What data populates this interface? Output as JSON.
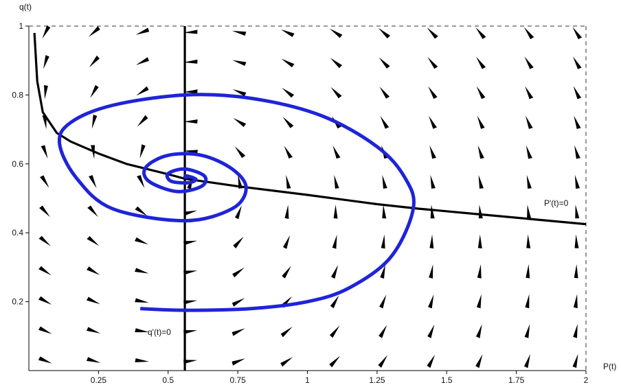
{
  "chart_data": {
    "type": "phase_portrait",
    "xlabel": "P(t)",
    "ylabel": "q(t)",
    "xlim": [
      0.0,
      2.0
    ],
    "ylim": [
      0.0,
      1.0
    ],
    "xticks": [
      0.25,
      0.5,
      0.75,
      1,
      1.25,
      1.5,
      1.75,
      2
    ],
    "xtick_labels": [
      "0.25",
      "0.5",
      "0.75",
      "1",
      "1.25",
      "1.5",
      "1.75",
      "2"
    ],
    "yticks": [
      0.2,
      0.4,
      0.6,
      0.8,
      1
    ],
    "ytick_labels": [
      "0.2",
      "0.4",
      "0.6",
      "0.8",
      "1"
    ],
    "equilibrium": {
      "P": 0.56,
      "q": 0.557
    },
    "nullcline_q": {
      "label": "q'(t)=0",
      "P": 0.56
    },
    "nullcline_P": {
      "label": "P'(t)=0",
      "points": [
        [
          0.02,
          0.98
        ],
        [
          0.03,
          0.84
        ],
        [
          0.05,
          0.75
        ],
        [
          0.1,
          0.69
        ],
        [
          0.15,
          0.665
        ],
        [
          0.25,
          0.63
        ],
        [
          0.35,
          0.6
        ],
        [
          0.5,
          0.57
        ],
        [
          0.56,
          0.557
        ],
        [
          0.75,
          0.535
        ],
        [
          1.0,
          0.51
        ],
        [
          1.25,
          0.483
        ],
        [
          1.4,
          0.47
        ],
        [
          1.6,
          0.455
        ],
        [
          1.8,
          0.44
        ],
        [
          2.0,
          0.425
        ]
      ]
    },
    "trajectory": {
      "points": [
        [
          0.4,
          0.18
        ],
        [
          0.56,
          0.175
        ],
        [
          0.8,
          0.18
        ],
        [
          1.0,
          0.2
        ],
        [
          1.15,
          0.24
        ],
        [
          1.3,
          0.33
        ],
        [
          1.38,
          0.47
        ],
        [
          1.35,
          0.56
        ],
        [
          1.25,
          0.65
        ],
        [
          1.05,
          0.74
        ],
        [
          0.8,
          0.79
        ],
        [
          0.56,
          0.8
        ],
        [
          0.3,
          0.77
        ],
        [
          0.15,
          0.72
        ],
        [
          0.11,
          0.66
        ],
        [
          0.17,
          0.56
        ],
        [
          0.3,
          0.47
        ],
        [
          0.56,
          0.435
        ],
        [
          0.73,
          0.47
        ],
        [
          0.78,
          0.53
        ],
        [
          0.73,
          0.585
        ],
        [
          0.62,
          0.625
        ],
        [
          0.5,
          0.625
        ],
        [
          0.42,
          0.59
        ],
        [
          0.43,
          0.55
        ],
        [
          0.53,
          0.52
        ],
        [
          0.62,
          0.535
        ],
        [
          0.63,
          0.565
        ],
        [
          0.56,
          0.585
        ],
        [
          0.5,
          0.572
        ],
        [
          0.51,
          0.55
        ],
        [
          0.57,
          0.545
        ],
        [
          0.6,
          0.555
        ],
        [
          0.565,
          0.565
        ],
        [
          0.56,
          0.557
        ]
      ]
    },
    "direction_field": {
      "note": "arrows computed from a predator-prey style vector field: dP ~ P*(q_null(P) - q), dq ~ q*(P - 0.56)"
    },
    "grid": false,
    "legend": "none",
    "colors": {
      "trajectory": "#1f24d8",
      "nullcline": "#000000",
      "arrows": "#000000",
      "frame": "#000000"
    }
  }
}
